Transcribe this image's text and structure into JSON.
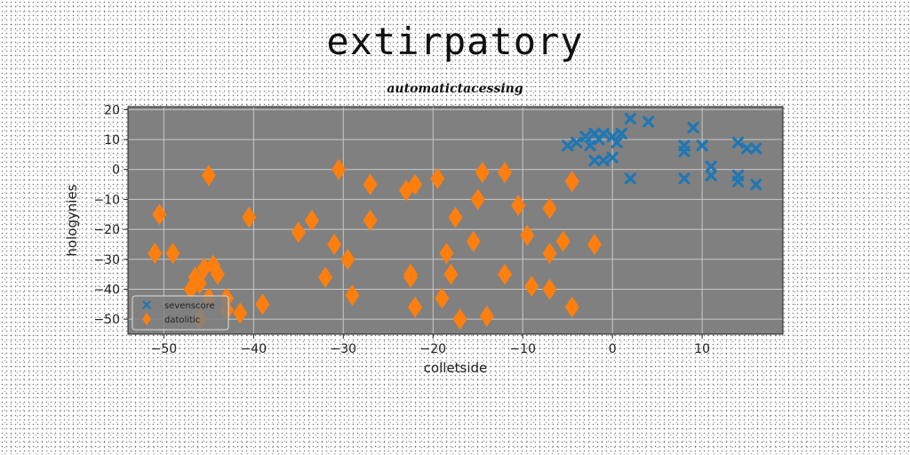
{
  "chart_data": {
    "type": "scatter",
    "title": "extirpatory",
    "subtitle": "automatictacessing",
    "xlabel": "colletside",
    "ylabel": "hologynies",
    "xlim": [
      -54,
      19
    ],
    "ylim": [
      -55,
      21
    ],
    "xticks": [
      -50,
      -40,
      -30,
      -20,
      -10,
      0,
      10
    ],
    "yticks": [
      20,
      10,
      0,
      -10,
      -20,
      -30,
      -40,
      -50
    ],
    "grid": true,
    "legend_position": "lower-left",
    "plot_background": "#808080",
    "series": [
      {
        "name": "sevenscore",
        "marker": "x",
        "color": "#1f77b4",
        "x": [
          -5,
          -4,
          -3,
          -2.5,
          -2,
          -1.5,
          -1,
          0,
          0.5,
          1,
          2,
          4,
          -2,
          -1,
          0,
          2,
          8,
          9,
          10,
          8,
          10,
          11,
          14,
          15,
          16,
          8,
          11,
          14,
          14,
          16
        ],
        "y": [
          8,
          9,
          11,
          8,
          12,
          10,
          12,
          11,
          9,
          12,
          17,
          16,
          3,
          3,
          4,
          -3,
          8,
          14,
          8,
          6,
          8,
          1,
          9,
          7,
          7,
          -3,
          -2,
          -2,
          -4,
          -5
        ]
      },
      {
        "name": "datolitic",
        "marker": "diamond",
        "color": "#ff7f0e",
        "x": [
          -50.5,
          -51,
          -49,
          -47,
          -46.5,
          -46,
          -45.5,
          -45,
          -44.5,
          -44,
          -43,
          -41.5,
          -40.5,
          -39,
          -35,
          -33.5,
          -32,
          -31,
          -30.5,
          -29.5,
          -29,
          -27,
          -27,
          -23,
          -22.5,
          -22.5,
          -22,
          -22,
          -19.5,
          -19,
          -18.5,
          -18,
          -17.5,
          -17,
          -15.5,
          -15,
          -14.5,
          -14,
          -12,
          -12,
          -10.5,
          -9.5,
          -9,
          -7,
          -7,
          -7,
          -5.5,
          -4.5,
          -4.5,
          -2,
          -43,
          -46,
          -45
        ],
        "y": [
          -15,
          -28,
          -28,
          -40,
          -36,
          -50,
          -33,
          -2,
          -32,
          -35,
          -43,
          -48,
          -16,
          -45,
          -21,
          -17,
          -36,
          -25,
          0,
          -30,
          -42,
          -5,
          -17,
          -7,
          -35,
          -36,
          -5,
          -46,
          -3,
          -43,
          -28,
          -35,
          -16,
          -50,
          -24,
          -10,
          -1,
          -49,
          -1,
          -35,
          -12,
          -22,
          -39,
          -13,
          -28,
          -40,
          -24,
          -46,
          -4,
          -25,
          -47,
          -38,
          -43
        ]
      }
    ]
  }
}
